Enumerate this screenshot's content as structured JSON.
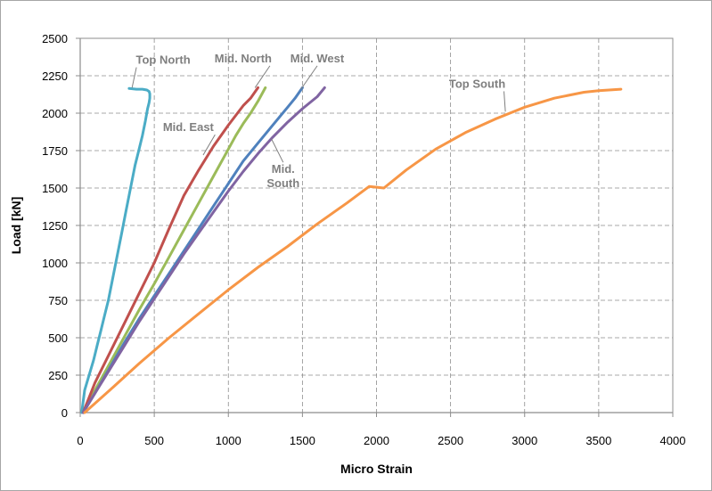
{
  "chart_data": {
    "type": "line",
    "title": "",
    "xlabel": "Micro Strain",
    "ylabel": "Load [kN]",
    "xlim": [
      0,
      4000
    ],
    "ylim": [
      0,
      2500
    ],
    "xticks": [
      0,
      500,
      1000,
      1500,
      2000,
      2500,
      3000,
      3500,
      4000
    ],
    "yticks": [
      0,
      250,
      500,
      750,
      1000,
      1250,
      1500,
      1750,
      2000,
      2250,
      2500
    ],
    "grid": true,
    "legend": "none",
    "series": [
      {
        "name": "Top North",
        "color": "#4bacc6",
        "x": [
          10,
          30,
          60,
          90,
          115,
          140,
          165,
          190,
          220,
          250,
          280,
          310,
          340,
          370,
          395,
          420,
          440,
          455,
          465,
          470,
          470,
          465,
          450,
          420,
          380,
          330
        ],
        "y": [
          0,
          150,
          250,
          350,
          450,
          550,
          650,
          750,
          900,
          1050,
          1200,
          1350,
          1500,
          1650,
          1750,
          1850,
          1950,
          2030,
          2070,
          2100,
          2130,
          2145,
          2155,
          2160,
          2160,
          2165
        ]
      },
      {
        "name": "Mid. North",
        "color": "#9bbb59",
        "x": [
          20,
          100,
          200,
          300,
          400,
          500,
          600,
          700,
          800,
          900,
          1000,
          1050,
          1100,
          1150,
          1200,
          1250
        ],
        "y": [
          0,
          150,
          330,
          510,
          690,
          860,
          1040,
          1220,
          1400,
          1580,
          1760,
          1850,
          1930,
          2000,
          2080,
          2170
        ]
      },
      {
        "name": "Mid. East",
        "color": "#c0504d",
        "x": [
          20,
          100,
          200,
          300,
          400,
          500,
          600,
          700,
          800,
          900,
          1000,
          1100,
          1150,
          1200
        ],
        "y": [
          0,
          200,
          400,
          600,
          800,
          1000,
          1230,
          1450,
          1620,
          1780,
          1920,
          2050,
          2100,
          2170
        ]
      },
      {
        "name": "Mid. West",
        "color": "#4f81bd",
        "x": [
          20,
          100,
          200,
          300,
          400,
          500,
          600,
          700,
          800,
          900,
          1000,
          1100,
          1200,
          1300,
          1400,
          1450,
          1500
        ],
        "y": [
          0,
          130,
          300,
          470,
          630,
          780,
          930,
          1080,
          1230,
          1380,
          1530,
          1680,
          1800,
          1920,
          2040,
          2100,
          2170
        ]
      },
      {
        "name": "Mid. South",
        "color": "#8064a2",
        "x": [
          20,
          100,
          200,
          300,
          400,
          500,
          600,
          700,
          800,
          900,
          1000,
          1100,
          1200,
          1300,
          1400,
          1500,
          1600,
          1650
        ],
        "y": [
          0,
          130,
          290,
          450,
          610,
          760,
          910,
          1060,
          1200,
          1340,
          1480,
          1610,
          1730,
          1840,
          1940,
          2030,
          2110,
          2170
        ]
      },
      {
        "name": "Top South",
        "color": "#f79646",
        "x": [
          30,
          200,
          400,
          600,
          800,
          1000,
          1200,
          1400,
          1600,
          1800,
          1950,
          2050,
          2200,
          2400,
          2600,
          2800,
          3000,
          3200,
          3400,
          3500,
          3650
        ],
        "y": [
          0,
          150,
          330,
          500,
          660,
          820,
          970,
          1110,
          1260,
          1400,
          1510,
          1500,
          1620,
          1760,
          1870,
          1960,
          2040,
          2100,
          2140,
          2150,
          2160
        ]
      }
    ],
    "annotations": [
      {
        "text": "Top North",
        "x": 560,
        "y": 2330,
        "series": "Top North",
        "point": [
          350,
          2170
        ]
      },
      {
        "text": "Mid. North",
        "x": 1100,
        "y": 2340,
        "series": "Mid. North",
        "point": [
          1180,
          2170
        ]
      },
      {
        "text": "Mid. West",
        "x": 1600,
        "y": 2340,
        "series": "Mid. West",
        "point": [
          1490,
          2160
        ]
      },
      {
        "text": "Mid. East",
        "x": 730,
        "y": 1880,
        "series": "Mid. East",
        "point": [
          830,
          1720
        ]
      },
      {
        "text": "Mid.\nSouth",
        "x": 1370,
        "y": 1600,
        "series": "Mid. South",
        "point": [
          1290,
          1830
        ]
      },
      {
        "text": "Top South",
        "x": 2680,
        "y": 2170,
        "series": "Top South",
        "point": [
          2870,
          2010
        ]
      }
    ]
  }
}
